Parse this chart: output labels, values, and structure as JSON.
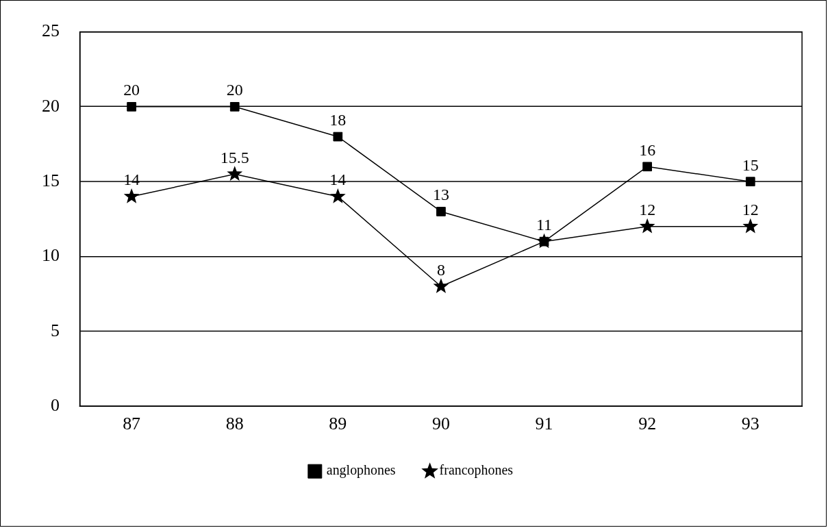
{
  "chart_data": {
    "type": "line",
    "categories": [
      "87",
      "88",
      "89",
      "90",
      "91",
      "92",
      "93"
    ],
    "series": [
      {
        "name": "anglophones",
        "color": "#000000",
        "marker": "square",
        "values": [
          20,
          20,
          18,
          13,
          11,
          16,
          15
        ],
        "value_labels": [
          "20",
          "20",
          "18",
          "13",
          "11",
          "16",
          "15"
        ]
      },
      {
        "name": "francophones",
        "color": "#000000",
        "marker": "star",
        "values": [
          14,
          15.5,
          14,
          8,
          11,
          12,
          12
        ],
        "value_labels": [
          "14",
          "15.5",
          "14",
          "8",
          null,
          "12",
          "12"
        ]
      }
    ],
    "ylim": [
      0,
      25
    ],
    "yticks": [
      0,
      5,
      10,
      15,
      20,
      25
    ],
    "grid": "y",
    "legend": "bottom",
    "line_style": "solid"
  }
}
